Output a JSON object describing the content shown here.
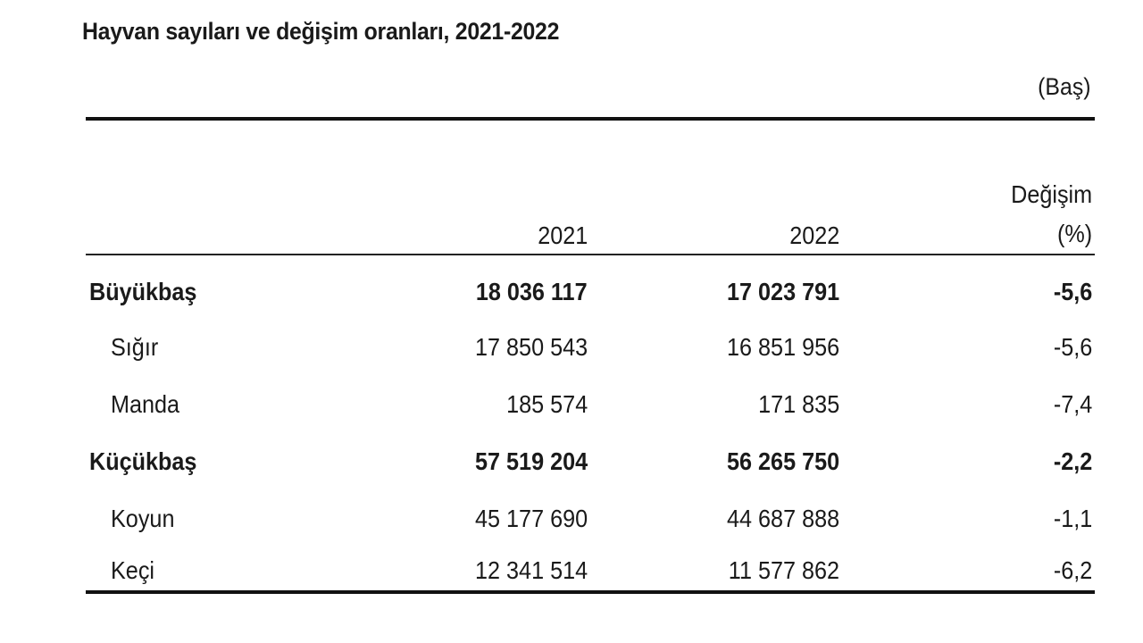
{
  "title": "Hayvan sayıları ve değişim oranları, 2021-2022",
  "unit": "(Baş)",
  "headers": {
    "y2021": "2021",
    "y2022": "2022",
    "change_line1": "Değişim",
    "change_line2": "(%)"
  },
  "rows": [
    {
      "label": "Büyükbaş",
      "y2021": "18 036 117",
      "y2022": "17 023 791",
      "change": "-5,6"
    },
    {
      "label": "Sığır",
      "y2021": "17 850 543",
      "y2022": "16 851 956",
      "change": "-5,6"
    },
    {
      "label": "Manda",
      "y2021": "185 574",
      "y2022": "171 835",
      "change": "-7,4"
    },
    {
      "label": "Küçükbaş",
      "y2021": "57 519 204",
      "y2022": "56 265 750",
      "change": "-2,2"
    },
    {
      "label": "Koyun",
      "y2021": "45 177 690",
      "y2022": "44 687 888",
      "change": "-1,1"
    },
    {
      "label": "Keçi",
      "y2021": "12 341 514",
      "y2022": "11 577 862",
      "change": "-6,2"
    }
  ]
}
